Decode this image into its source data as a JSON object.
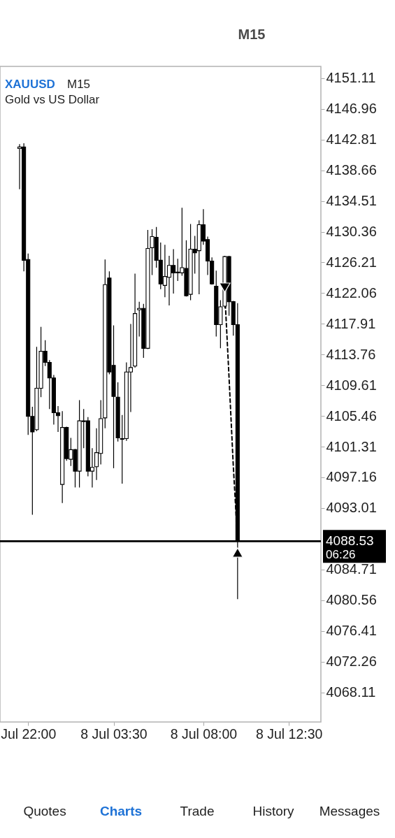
{
  "chart_data": {
    "type": "candlestick",
    "title": "XAUUSD",
    "subtitle": "Gold vs US Dollar",
    "color": "#000000",
    "categories": [
      null,
      null,
      "Jul 22:00",
      null,
      null,
      null,
      null,
      null,
      null,
      null,
      null,
      null,
      null,
      null,
      null,
      null,
      null,
      null,
      null,
      null,
      null,
      null,
      "8 Jul 03:30",
      null,
      null,
      null,
      null,
      null,
      null,
      null,
      null,
      null,
      null,
      null,
      null,
      null,
      null,
      null,
      null,
      null,
      null,
      null,
      null,
      "8 Jul 08:00",
      null,
      null,
      null,
      null,
      null,
      null,
      null,
      null,
      null,
      null,
      null,
      null,
      null,
      null,
      null,
      null,
      null,
      null,
      null,
      "8 Jul 12:30",
      null,
      null,
      null,
      null,
      null,
      null,
      null
    ],
    "ohlc": [
      [
        4141.6,
        4142.2,
        4136.1,
        4141.8
      ],
      [
        4141.8,
        4142.3,
        4125.0,
        4126.5
      ],
      [
        4126.6,
        4127.4,
        4102.9,
        4105.4
      ],
      [
        4105.4,
        4106.7,
        4092.1,
        4103.3
      ],
      [
        4103.6,
        4114.8,
        4103.4,
        4109.2
      ],
      [
        4109.2,
        4117.5,
        4108.0,
        4114.2
      ],
      [
        4114.2,
        4115.7,
        4112.2,
        4112.7
      ],
      [
        4112.7,
        4113.0,
        4106.4,
        4110.6
      ],
      [
        4110.6,
        4111.0,
        4104.3,
        4105.9
      ],
      [
        4105.9,
        4106.8,
        4103.3,
        4105.5
      ],
      [
        4096.2,
        4106.1,
        4093.7,
        4103.9
      ],
      [
        4103.9,
        4104.0,
        4099.4,
        4099.7
      ],
      [
        4099.6,
        4102.5,
        4098.7,
        4100.9
      ],
      [
        4100.9,
        4101.0,
        4095.8,
        4098.0
      ],
      [
        4098.0,
        4107.6,
        4095.8,
        4104.8
      ],
      [
        4104.8,
        4106.4,
        4101.1,
        4104.7
      ],
      [
        4104.8,
        4105.3,
        4097.3,
        4098.0
      ],
      [
        4098.0,
        4101.1,
        4095.8,
        4098.5
      ],
      [
        4098.6,
        4103.8,
        4096.8,
        4100.5
      ],
      [
        4100.4,
        4107.6,
        4098.9,
        4105.1
      ],
      [
        4105.2,
        4126.6,
        4103.8,
        4123.2
      ],
      [
        4124.1,
        4125.0,
        4111.1,
        4111.4
      ],
      [
        4112.3,
        4117.7,
        4098.4,
        4108.1
      ],
      [
        4108.0,
        4110.0,
        4102.0,
        4102.5
      ],
      [
        4102.3,
        4105.6,
        4096.3,
        4102.4
      ],
      [
        4102.4,
        4112.7,
        4102.1,
        4111.4
      ],
      [
        4111.4,
        4117.9,
        4106.0,
        4112.0
      ],
      [
        4112.2,
        4124.7,
        4112.0,
        4119.3
      ],
      [
        4119.8,
        4120.9,
        4116.2,
        4120.0
      ],
      [
        4120.0,
        4120.6,
        4113.3,
        4114.6
      ],
      [
        4114.6,
        4130.6,
        4114.5,
        4128.1
      ],
      [
        4128.2,
        4130.7,
        4124.5,
        4129.7
      ],
      [
        4129.6,
        4131.0,
        4125.5,
        4126.5
      ],
      [
        4126.5,
        4128.9,
        4122.6,
        4123.3
      ],
      [
        4123.1,
        4128.6,
        4121.5,
        4124.3
      ],
      [
        4124.2,
        4127.1,
        4120.4,
        4125.8
      ],
      [
        4125.8,
        4128.0,
        4122.0,
        4124.8
      ],
      [
        4124.8,
        4126.7,
        4123.7,
        4124.9
      ],
      [
        4124.8,
        4133.6,
        4124.4,
        4125.5
      ],
      [
        4125.4,
        4129.2,
        4121.6,
        4121.7
      ],
      [
        4121.9,
        4131.4,
        4121.1,
        4128.0
      ],
      [
        4128.0,
        4129.8,
        4124.7,
        4127.5
      ],
      [
        4127.8,
        4131.9,
        4121.9,
        4131.3
      ],
      [
        4131.3,
        4133.4,
        4128.6,
        4129.1
      ],
      [
        4129.3,
        4129.7,
        4124.5,
        4126.4
      ],
      [
        4126.4,
        4126.9,
        4123.2,
        4123.3
      ],
      [
        4123.0,
        4125.1,
        4116.2,
        4117.8
      ],
      [
        4117.8,
        4121.1,
        4114.6,
        4120.2
      ],
      [
        4120.3,
        4127.1,
        4120.0,
        4127.0
      ],
      [
        4127.0,
        4127.1,
        4119.0,
        4120.9
      ],
      [
        4120.9,
        4121.0,
        4116.3,
        4117.8
      ],
      [
        4117.8,
        4120.7,
        4080.7,
        4088.53
      ],
      null,
      null,
      null,
      null,
      null,
      null,
      null,
      null,
      null,
      null,
      null,
      null,
      null,
      null,
      null,
      null,
      null,
      null,
      null
    ],
    "series": [
      {
        "type": "line",
        "color": "#000000",
        "line_style": "dashed",
        "marker": "none",
        "values": [
          null,
          null,
          null,
          null,
          null,
          null,
          null,
          null,
          null,
          null,
          null,
          null,
          null,
          null,
          null,
          null,
          null,
          null,
          null,
          null,
          null,
          null,
          null,
          null,
          null,
          null,
          null,
          null,
          null,
          null,
          null,
          null,
          null,
          null,
          null,
          null,
          null,
          null,
          null,
          null,
          null,
          null,
          null,
          null,
          null,
          null,
          null,
          null,
          4122.2,
          4110.7,
          4098.7,
          4088.5,
          null,
          null,
          null,
          null,
          null,
          null,
          null,
          null,
          null,
          null,
          null,
          null,
          null,
          null,
          null,
          null,
          null,
          null,
          null
        ]
      },
      {
        "type": "scatter",
        "color": "#000000",
        "marker": "triangle",
        "values": [
          null,
          null,
          null,
          null,
          null,
          null,
          null,
          null,
          null,
          null,
          null,
          null,
          null,
          null,
          null,
          null,
          null,
          null,
          null,
          null,
          null,
          null,
          null,
          null,
          null,
          null,
          null,
          null,
          null,
          null,
          null,
          null,
          null,
          null,
          null,
          null,
          null,
          null,
          null,
          null,
          null,
          null,
          null,
          null,
          null,
          null,
          null,
          null,
          4122.8,
          null,
          null,
          4087.0,
          null,
          null,
          null,
          null,
          null,
          null,
          null,
          null,
          null,
          null,
          null,
          null,
          null,
          null,
          null,
          null,
          null,
          null,
          null
        ]
      }
    ],
    "ylim": [
      4064.1,
      4152.7
    ],
    "yticks": [
      4151.11,
      4146.96,
      4142.81,
      4138.66,
      4134.51,
      4130.36,
      4126.21,
      4122.06,
      4117.91,
      4113.76,
      4109.61,
      4105.46,
      4101.31,
      4097.16,
      4093.01,
      4084.71,
      4080.56,
      4076.41,
      4072.26,
      4068.11
    ],
    "ref_lines": [
      {
        "axis": "y",
        "value": 4088.53,
        "label": "4088.53",
        "color": "#000000",
        "line_style": "solid"
      }
    ],
    "annotations": [
      "M15",
      "M15",
      "06:26",
      "Quotes",
      "Charts",
      "Trade",
      "History",
      "Messages"
    ]
  }
}
